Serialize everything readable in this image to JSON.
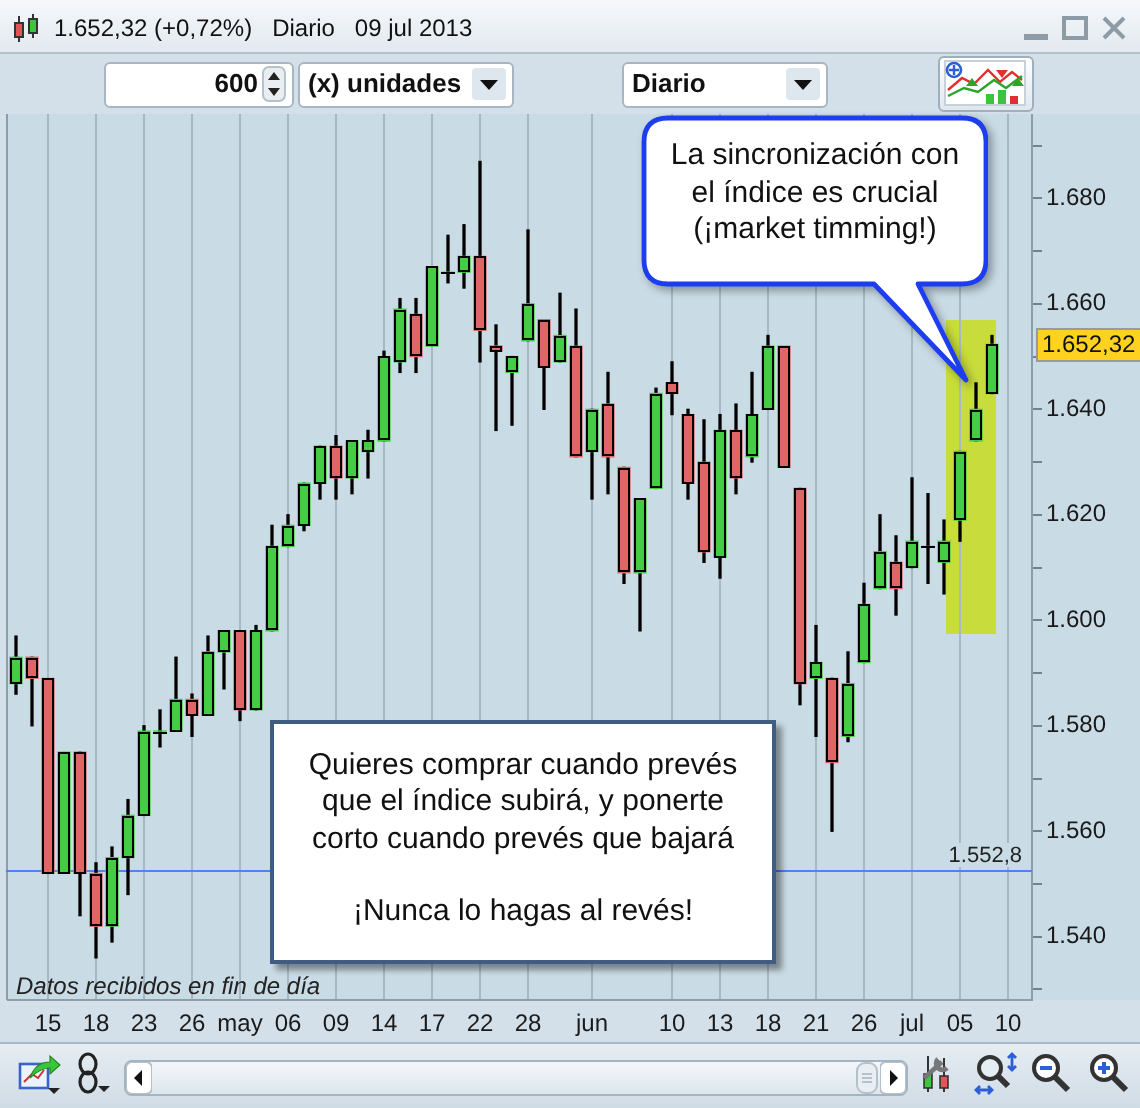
{
  "chart_data": {
    "type": "candlestick",
    "title": "1.652,32 (+0,72%)   Diario   09 jul 2013",
    "categories": [
      null,
      null,
      "15",
      null,
      null,
      "18",
      null,
      null,
      "23",
      null,
      null,
      "26",
      null,
      null,
      "may",
      null,
      null,
      "06",
      null,
      null,
      "09",
      null,
      null,
      "14",
      null,
      null,
      "17",
      null,
      null,
      "22",
      null,
      null,
      "28",
      null,
      null,
      null,
      "jun",
      null,
      null,
      null,
      null,
      "10",
      null,
      null,
      "13",
      null,
      null,
      "18",
      null,
      null,
      "21",
      null,
      null,
      "26",
      null,
      null,
      "jul",
      null,
      null,
      "05",
      null,
      null,
      "10",
      null
    ],
    "ohlc": [
      [
        1588,
        1597,
        1586,
        1593
      ],
      [
        1593,
        1593,
        1580,
        1589
      ],
      [
        1589,
        1589,
        1552,
        1552
      ],
      [
        1552,
        1575,
        1552,
        1575
      ],
      [
        1575,
        1575,
        1544,
        1552
      ],
      [
        1552,
        1554,
        1536,
        1542
      ],
      [
        1542,
        1557,
        1539,
        1555
      ],
      [
        1555,
        1566,
        1548,
        1563
      ],
      [
        1563,
        1580,
        1563,
        1579
      ],
      [
        1579,
        1583,
        1576,
        1579
      ],
      [
        1579,
        1593,
        1579,
        1585
      ],
      [
        1585,
        1586,
        1578,
        1582
      ],
      [
        1582,
        1597,
        1582,
        1594
      ],
      [
        1594,
        1598,
        1587,
        1598
      ],
      [
        1598,
        1598,
        1581,
        1583
      ],
      [
        1583,
        1599,
        1583,
        1598
      ],
      [
        1598,
        1618,
        1598,
        1614
      ],
      [
        1614,
        1620,
        1614,
        1618
      ],
      [
        1618,
        1626,
        1617,
        1626
      ],
      [
        1626,
        1633,
        1623,
        1633
      ],
      [
        1633,
        1635,
        1623,
        1627
      ],
      [
        1627,
        1634,
        1624,
        1634
      ],
      [
        1632,
        1636,
        1627,
        1634
      ],
      [
        1634,
        1651,
        1634,
        1650
      ],
      [
        1649,
        1661,
        1647,
        1659
      ],
      [
        1658,
        1661,
        1647,
        1650
      ],
      [
        1652,
        1667,
        1652,
        1667
      ],
      [
        1666,
        1673,
        1664,
        1666
      ],
      [
        1666,
        1675,
        1663,
        1669
      ],
      [
        1669,
        1687,
        1649,
        1655
      ],
      [
        1652,
        1656,
        1636,
        1651
      ],
      [
        1647,
        1650,
        1637,
        1650
      ],
      [
        1653,
        1674,
        1653,
        1660
      ],
      [
        1657,
        1657,
        1640,
        1648
      ],
      [
        1649,
        1662,
        1649,
        1654
      ],
      [
        1652,
        1659,
        1631,
        1631
      ],
      [
        1632,
        1640,
        1623,
        1640
      ],
      [
        1641,
        1647,
        1624,
        1631
      ],
      [
        1629,
        1629,
        1607,
        1609
      ],
      [
        1609,
        1623,
        1598,
        1623
      ],
      [
        1625,
        1644,
        1625,
        1643
      ],
      [
        1645,
        1649,
        1639,
        1643
      ],
      [
        1639,
        1640,
        1623,
        1626
      ],
      [
        1630,
        1638,
        1611,
        1613
      ],
      [
        1612,
        1639,
        1608,
        1636
      ],
      [
        1636,
        1641,
        1624,
        1627
      ],
      [
        1631,
        1647,
        1630,
        1639
      ],
      [
        1640,
        1654,
        1640,
        1652
      ],
      [
        1652,
        1652,
        1629,
        1629
      ],
      [
        1625,
        1625,
        1584,
        1588
      ],
      [
        1589,
        1599,
        1578,
        1592
      ],
      [
        1589,
        1589,
        1560,
        1573
      ],
      [
        1578,
        1594,
        1577,
        1588
      ],
      [
        1592,
        1607,
        1592,
        1603
      ],
      [
        1606,
        1620,
        1606,
        1613
      ],
      [
        1611,
        1616,
        1601,
        1606
      ],
      [
        1610,
        1627,
        1610,
        1615
      ],
      [
        1614,
        1624,
        1607,
        1614
      ],
      [
        1611,
        1619,
        1605,
        1615
      ],
      [
        1619,
        1632,
        1615,
        1632
      ],
      [
        1634,
        1645,
        1634,
        1640
      ],
      [
        1643,
        1654,
        1643,
        1652.32
      ],
      null,
      null
    ],
    "colors": [
      "#44cc44",
      "#e06666",
      "#e06666",
      "#44cc44",
      "#e06666",
      "#e06666",
      "#44cc44",
      "#44cc44",
      "#44cc44",
      "#44cc44",
      "#44cc44",
      "#e06666",
      "#44cc44",
      "#44cc44",
      "#e06666",
      "#44cc44",
      "#44cc44",
      "#44cc44",
      "#44cc44",
      "#44cc44",
      "#e06666",
      "#44cc44",
      "#44cc44",
      "#44cc44",
      "#44cc44",
      "#e06666",
      "#44cc44",
      "#44cc44",
      "#44cc44",
      "#e06666",
      "#e06666",
      "#44cc44",
      "#44cc44",
      "#e06666",
      "#44cc44",
      "#e06666",
      "#44cc44",
      "#e06666",
      "#e06666",
      "#44cc44",
      "#44cc44",
      "#e06666",
      "#e06666",
      "#e06666",
      "#44cc44",
      "#e06666",
      "#44cc44",
      "#44cc44",
      "#e06666",
      "#e06666",
      "#44cc44",
      "#e06666",
      "#44cc44",
      "#44cc44",
      "#44cc44",
      "#e06666",
      "#44cc44",
      "#e06666",
      "#44cc44",
      "#44cc44",
      "#44cc44",
      "#44cc44",
      null,
      null
    ],
    "ylim": [
      1528,
      1696
    ],
    "yticks": [
      {
        "value": 1530,
        "label": null
      },
      {
        "value": 1540,
        "label": "1.540"
      },
      {
        "value": 1550,
        "label": null
      },
      {
        "value": 1560,
        "label": "1.560"
      },
      {
        "value": 1570,
        "label": null
      },
      {
        "value": 1580,
        "label": "1.580"
      },
      {
        "value": 1590,
        "label": null
      },
      {
        "value": 1600,
        "label": "1.600"
      },
      {
        "value": 1610,
        "label": null
      },
      {
        "value": 1620,
        "label": "1.620"
      },
      {
        "value": 1630,
        "label": null
      },
      {
        "value": 1640,
        "label": "1.640"
      },
      {
        "value": 1650,
        "label": null
      },
      {
        "value": 1660,
        "label": "1.660"
      },
      {
        "value": 1670,
        "label": null
      },
      {
        "value": 1680,
        "label": "1.680"
      },
      {
        "value": 1690,
        "label": null
      }
    ],
    "grid": "x",
    "ref_lines": [
      {
        "axis": "y",
        "value": 1552.8,
        "label": "1.552,8",
        "color": "#4a86f0"
      }
    ],
    "annotations": [
      "La sincronización con\nel índice es crucial\n(¡market timming!)",
      "Quieres comprar cuando prevés\nque el índice subirá, y ponerte\ncorto cuando prevés que bajará\n\n¡Nunca lo hagas al revés!",
      "Datos recibidos en fin de día",
      "1.652,32",
      "600",
      "(x) unidades",
      "Diario"
    ]
  }
}
